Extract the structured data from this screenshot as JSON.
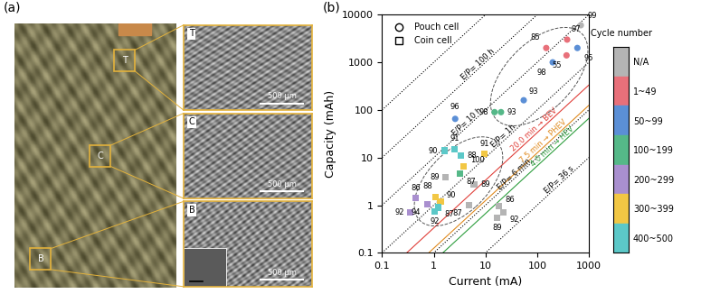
{
  "photo_panel": {
    "label": "(a)",
    "regions": [
      {
        "label": "T",
        "scale_bar": "500 µm"
      },
      {
        "label": "C",
        "scale_bar": "500 µm"
      },
      {
        "label": "B",
        "scale_bar": "500 µm"
      }
    ]
  },
  "chart_data": {
    "type": "scatter",
    "panel_label": "(b)",
    "x_label": "Current (mA)",
    "y_label": "Capacity (mAh)",
    "log": true,
    "grid": false,
    "legend": "upper left",
    "xlim": [
      0.1,
      1000
    ],
    "ylim": [
      0.1,
      10000
    ],
    "xticks": [
      0.1,
      1,
      10,
      100,
      1000
    ],
    "yticks": [
      0.1,
      1,
      10,
      100,
      1000,
      10000
    ],
    "colorbar": {
      "title": "Cycle number",
      "classes": [
        {
          "label": "N/A",
          "color": "#b4b4b4"
        },
        {
          "label": "1~49",
          "color": "#e8707a"
        },
        {
          "label": "50~99",
          "color": "#5b8fd6"
        },
        {
          "label": "100~199",
          "color": "#55b888"
        },
        {
          "label": "200~299",
          "color": "#a98fcf"
        },
        {
          "label": "300~399",
          "color": "#f2c744"
        },
        {
          "label": "400~500",
          "color": "#5cc8c8"
        }
      ]
    },
    "series": [
      {
        "name": "Pouch cell",
        "marker": "circle",
        "points": [
          {
            "label": "99",
            "x": 700,
            "y": 6000,
            "cycle": "N/A"
          },
          {
            "label": "97",
            "x": 380,
            "y": 3000,
            "cycle": "1~49"
          },
          {
            "label": "85",
            "x": 150,
            "y": 2000,
            "cycle": "1~49"
          },
          {
            "label": "55",
            "x": 370,
            "y": 1400,
            "cycle": "1~49"
          },
          {
            "label": "95",
            "x": 600,
            "y": 2000,
            "cycle": "50~99"
          },
          {
            "label": "98",
            "x": 200,
            "y": 1000,
            "cycle": "50~99"
          },
          {
            "label": "93",
            "x": 55,
            "y": 160,
            "cycle": "50~99"
          },
          {
            "label": "96",
            "x": 2.6,
            "y": 65,
            "cycle": "50~99"
          },
          {
            "label": "98",
            "x": 15,
            "y": 90,
            "cycle": "100~199"
          },
          {
            "label": "93",
            "x": 20,
            "y": 90,
            "cycle": "100~199"
          }
        ]
      },
      {
        "name": "Coin cell",
        "marker": "square",
        "points": [
          {
            "label": "90",
            "x": 1.6,
            "y": 14,
            "cycle": "400~500"
          },
          {
            "label": "91",
            "x": 2.5,
            "y": 15,
            "cycle": "400~500"
          },
          {
            "label": "88",
            "x": 3.3,
            "y": 11,
            "cycle": "400~500"
          },
          {
            "label": "91",
            "x": 9.5,
            "y": 12,
            "cycle": "300~399"
          },
          {
            "label": "100",
            "x": 3.8,
            "y": 6.5,
            "cycle": "300~399"
          },
          {
            "label": "87",
            "x": 3.2,
            "y": 4.6,
            "cycle": "100~199"
          },
          {
            "label": "89",
            "x": 1.7,
            "y": 3.9,
            "cycle": "N/A"
          },
          {
            "label": "89",
            "x": 6.0,
            "y": 2.7,
            "cycle": "N/A"
          },
          {
            "label": "86",
            "x": 0.45,
            "y": 1.4,
            "cycle": "200~299"
          },
          {
            "label": "94",
            "x": 0.75,
            "y": 1.05,
            "cycle": "200~299"
          },
          {
            "label": "88",
            "x": 1.1,
            "y": 1.5,
            "cycle": "300~399"
          },
          {
            "label": "90",
            "x": 1.35,
            "y": 1.2,
            "cycle": "300~399"
          },
          {
            "label": "92",
            "x": 0.35,
            "y": 0.7,
            "cycle": "200~299"
          },
          {
            "label": "92",
            "x": 1.05,
            "y": 0.75,
            "cycle": "400~500"
          },
          {
            "label": "87",
            "x": 1.2,
            "y": 0.9,
            "cycle": "400~500"
          },
          {
            "label": "87",
            "x": 4.8,
            "y": 1.0,
            "cycle": "N/A"
          },
          {
            "label": "86",
            "x": 18,
            "y": 0.95,
            "cycle": "N/A"
          },
          {
            "label": "92",
            "x": 22,
            "y": 0.7,
            "cycle": "N/A"
          },
          {
            "label": "89",
            "x": 17,
            "y": 0.55,
            "cycle": "N/A"
          }
        ]
      }
    ],
    "reference_lines": [
      {
        "ep_minutes": 60000,
        "color": "black",
        "line_style": "dotted"
      },
      {
        "ep_minutes": 6000,
        "label": "E/P= 100 h",
        "color": "black",
        "line_style": "dotted"
      },
      {
        "ep_minutes": 600,
        "label": "E/P= 10 h",
        "color": "black",
        "line_style": "dotted"
      },
      {
        "ep_minutes": 60,
        "label": "E/P= 1h",
        "color": "black",
        "line_style": "dotted"
      },
      {
        "ep_minutes": 6,
        "label": "E/P= 6 min",
        "color": "black",
        "line_style": "dotted"
      },
      {
        "ep_minutes": 0.6,
        "label": "E/P= 36 s",
        "color": "black",
        "line_style": "dotted"
      },
      {
        "ep_minutes": 20,
        "label": "20.0 min → BEV",
        "color": "#e0403a",
        "line_style": "solid"
      },
      {
        "ep_minutes": 7.5,
        "label": "7.5 min → PHEV",
        "color": "#e08a1e",
        "line_style": "solid"
      },
      {
        "ep_minutes": 4,
        "label": "4.0 min → HEV",
        "color": "#2e9e3e",
        "line_style": "solid"
      }
    ]
  }
}
